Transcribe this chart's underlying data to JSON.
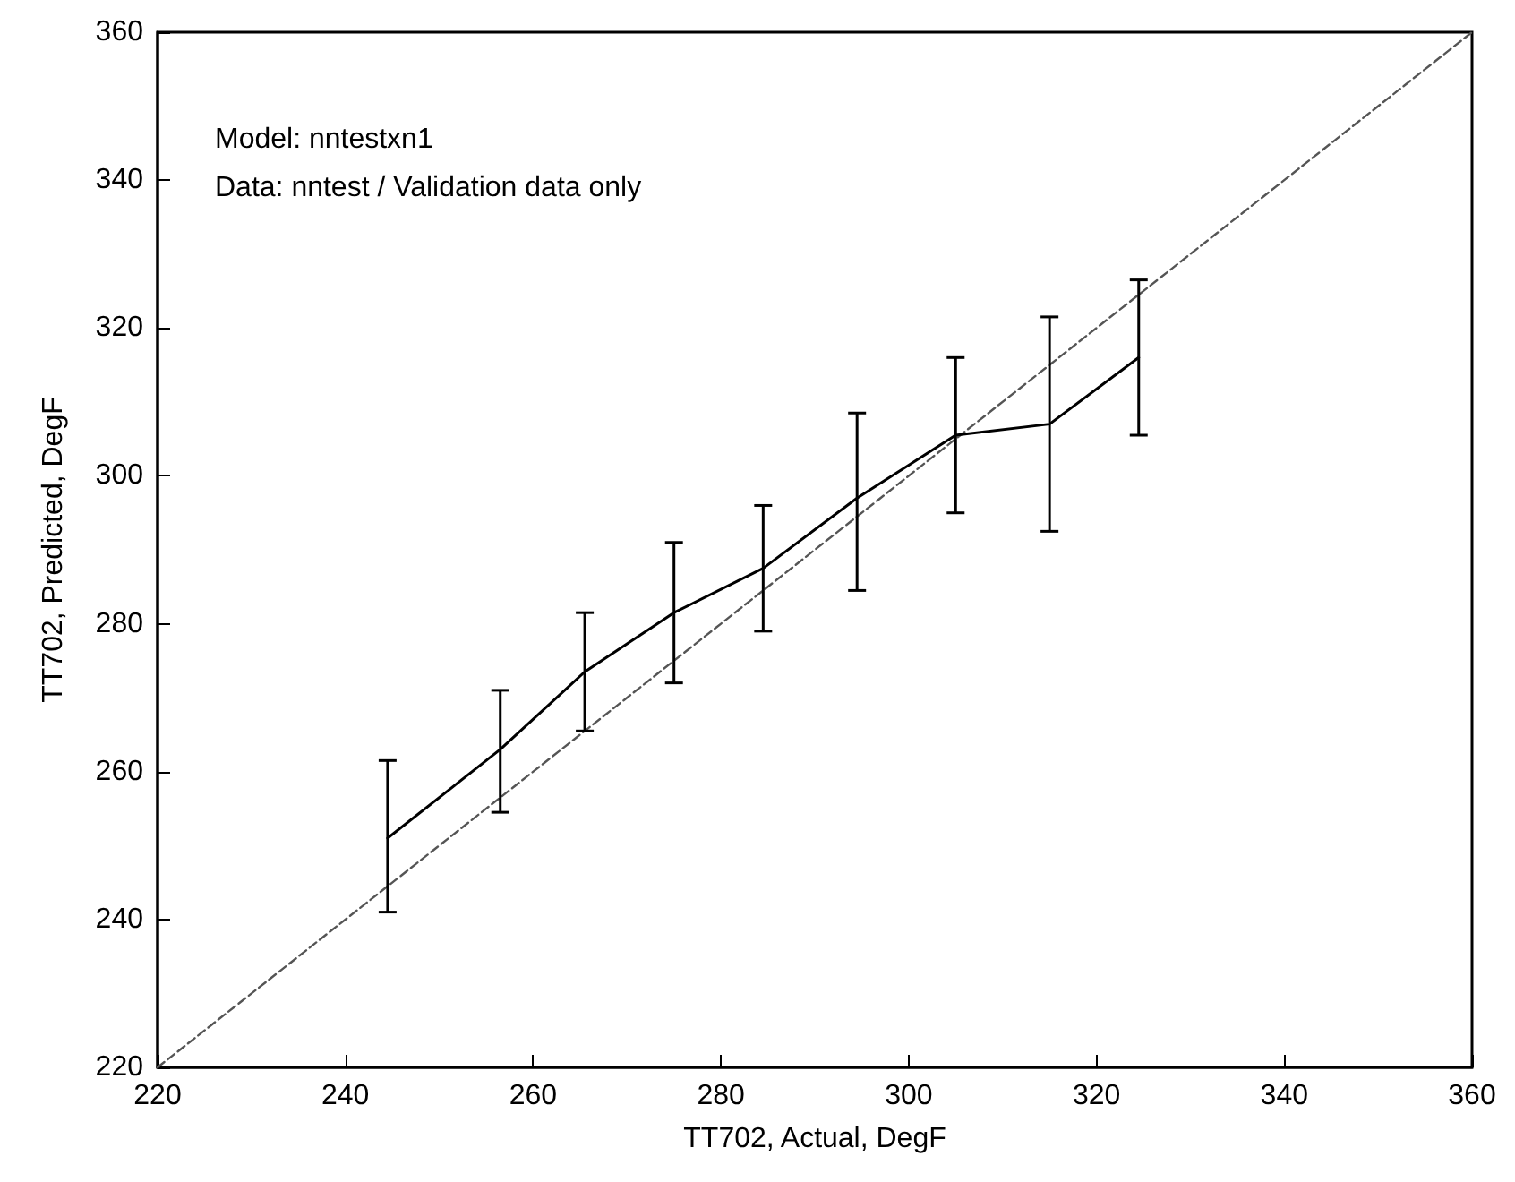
{
  "chart_data": {
    "type": "line",
    "xlabel": "TT702, Actual, DegF",
    "ylabel": "TT702, Predicted, DegF",
    "annotations": [
      "Model: nntestxn1",
      "Data: nntest / Validation data only"
    ],
    "xlim": [
      220,
      360
    ],
    "xticks": [
      220,
      240,
      260,
      280,
      300,
      320,
      340,
      360
    ],
    "ylim": [
      220,
      360
    ],
    "yticks": [
      220,
      240,
      260,
      280,
      300,
      320,
      340,
      360
    ],
    "grid": false,
    "marker": "none",
    "series": [
      {
        "color": "#000000",
        "line_style": "solid",
        "x": [
          244.5,
          256.5,
          265.5,
          275,
          284.5,
          294.5,
          305,
          315,
          324.5
        ],
        "values": [
          251,
          263,
          273.5,
          281.5,
          287.5,
          297,
          305.5,
          307,
          316
        ],
        "errors": [
          [
            241,
            261.5
          ],
          [
            254.5,
            271
          ],
          [
            265.5,
            281.5
          ],
          [
            272,
            291
          ],
          [
            279,
            296
          ],
          [
            284.5,
            308.5
          ],
          [
            295,
            316
          ],
          [
            292.5,
            321.5
          ],
          [
            305.5,
            326.5
          ]
        ]
      },
      {
        "color": "#555555",
        "line_style": "dashed",
        "x": [
          220,
          360
        ],
        "values": [
          220,
          360
        ]
      }
    ]
  }
}
